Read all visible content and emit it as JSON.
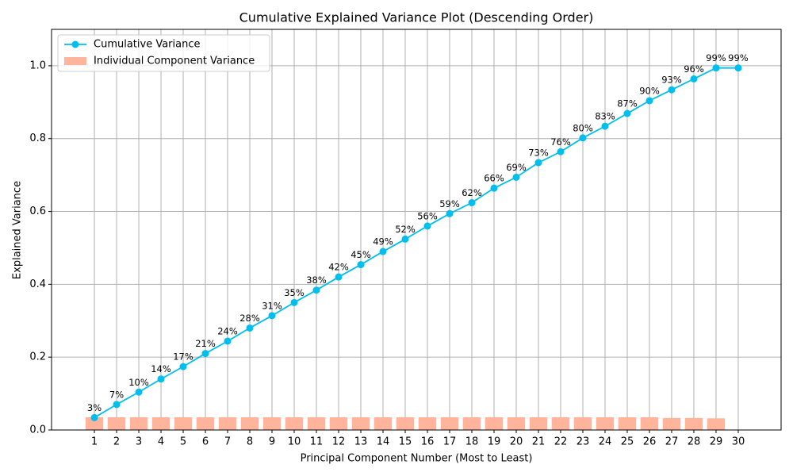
{
  "chart_data": {
    "type": "line",
    "title": "Cumulative Explained Variance Plot (Descending Order)",
    "x_label": "Principal Component Number (Most to Least)",
    "y_label": "Explained Variance",
    "x": [
      1,
      2,
      3,
      4,
      5,
      6,
      7,
      8,
      9,
      10,
      11,
      12,
      13,
      14,
      15,
      16,
      17,
      18,
      19,
      20,
      21,
      22,
      23,
      24,
      25,
      26,
      27,
      28,
      29,
      30
    ],
    "series": [
      {
        "name": "Cumulative Variance",
        "type": "line",
        "color": "#00bfef",
        "values": [
          0.034,
          0.07,
          0.104,
          0.14,
          0.174,
          0.21,
          0.244,
          0.28,
          0.314,
          0.35,
          0.384,
          0.42,
          0.454,
          0.49,
          0.524,
          0.56,
          0.594,
          0.624,
          0.664,
          0.694,
          0.734,
          0.764,
          0.802,
          0.834,
          0.869,
          0.904,
          0.934,
          0.964,
          0.994,
          0.994
        ],
        "value_labels": [
          "3%",
          "7%",
          "10%",
          "14%",
          "17%",
          "21%",
          "24%",
          "28%",
          "31%",
          "35%",
          "38%",
          "42%",
          "45%",
          "49%",
          "52%",
          "56%",
          "59%",
          "62%",
          "66%",
          "69%",
          "73%",
          "76%",
          "80%",
          "83%",
          "87%",
          "90%",
          "93%",
          "96%",
          "99%",
          "99%"
        ]
      },
      {
        "name": "Individual Component Variance",
        "type": "bar",
        "color": "#ffb49b",
        "values": [
          0.035,
          0.035,
          0.035,
          0.035,
          0.035,
          0.035,
          0.035,
          0.035,
          0.035,
          0.035,
          0.035,
          0.035,
          0.035,
          0.035,
          0.035,
          0.035,
          0.035,
          0.035,
          0.035,
          0.035,
          0.035,
          0.035,
          0.035,
          0.035,
          0.035,
          0.035,
          0.033,
          0.033,
          0.032,
          0
        ]
      }
    ],
    "xlim": [
      -0.93,
      31.93
    ],
    "ylim": [
      0,
      1.1
    ],
    "xticks": [
      1,
      2,
      3,
      4,
      5,
      6,
      7,
      8,
      9,
      10,
      11,
      12,
      13,
      14,
      15,
      16,
      17,
      18,
      19,
      20,
      21,
      22,
      23,
      24,
      25,
      26,
      27,
      28,
      29,
      30
    ],
    "yticks": [
      {
        "value": 0,
        "label": "0.0"
      },
      0.2,
      0.4,
      0.6,
      0.8,
      {
        "value": 1,
        "label": "1.0"
      }
    ],
    "grid": true,
    "legend": "upper-left"
  }
}
